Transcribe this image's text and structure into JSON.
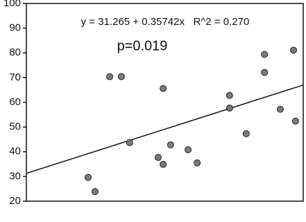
{
  "chart_data": {
    "type": "scatter",
    "annotations": [
      "y = 31.265 + 0.35742x   R^2 = 0.270",
      "p=0.019"
    ],
    "fit": {
      "intercept": 31.265,
      "slope": 0.35742
    },
    "x": [
      22.3,
      24.8,
      30.1,
      34.3,
      37.3,
      49.4,
      47.6,
      49.4,
      52.1,
      58.4,
      61.7,
      73.4,
      73.4,
      79.4,
      86,
      86,
      91.7,
      96.5,
      97.2
    ],
    "values": [
      29.6,
      23.9,
      70.4,
      70.4,
      43.7,
      65.6,
      37.7,
      34.9,
      42.8,
      40.8,
      35.5,
      62.8,
      57.7,
      47.3,
      79.4,
      72.1,
      57.2,
      81.1,
      52.4
    ],
    "color": "#7a7a7a",
    "xlim": [
      0,
      100
    ],
    "ylim": [
      20,
      100
    ],
    "yticks": [
      20,
      30,
      40,
      50,
      60,
      70,
      80,
      90,
      100
    ]
  }
}
